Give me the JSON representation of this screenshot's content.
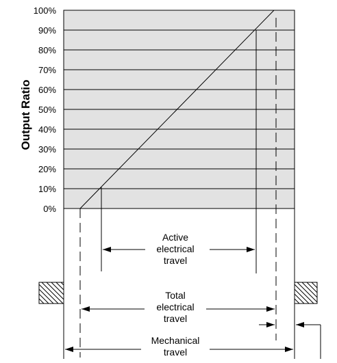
{
  "diagram": {
    "y_axis_label": "Output Ratio",
    "y_ticks": [
      "0%",
      "10%",
      "20%",
      "30%",
      "40%",
      "50%",
      "60%",
      "70%",
      "80%",
      "90%",
      "100%"
    ],
    "annotations": {
      "active": [
        "Active",
        "electrical",
        "travel"
      ],
      "total": [
        "Total",
        "electrical",
        "travel"
      ],
      "mechanical": [
        "Mechanical",
        "travel"
      ]
    },
    "colors": {
      "plot_fill": "#e2e2e2",
      "line": "#000000"
    }
  }
}
